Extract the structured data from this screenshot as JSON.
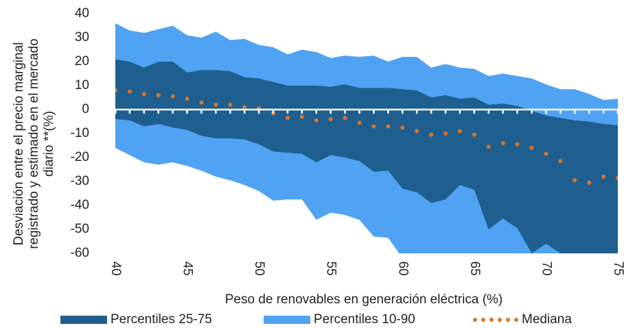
{
  "chart_data": {
    "type": "band",
    "x": [
      40,
      41,
      42,
      43,
      44,
      45,
      46,
      47,
      48,
      49,
      50,
      51,
      52,
      53,
      54,
      55,
      56,
      57,
      58,
      59,
      60,
      61,
      62,
      63,
      64,
      65,
      66,
      67,
      68,
      69,
      70,
      71,
      72,
      73,
      74,
      75
    ],
    "series": [
      {
        "name": "Percentiles 25-75",
        "color": "#1f5f8f",
        "upper": [
          21,
          20,
          17.5,
          20,
          20,
          15.5,
          16.5,
          16.5,
          16,
          13.5,
          13,
          11.5,
          10,
          10,
          10,
          9.5,
          10.5,
          9,
          9,
          9,
          8.5,
          8,
          5,
          6,
          4.5,
          5,
          2,
          2.5,
          1.5,
          -0.5,
          -2.5,
          -3.5,
          -4.5,
          -5,
          -6,
          -6.5
        ],
        "lower": [
          -4,
          -4.5,
          -7,
          -6,
          -7.5,
          -8.5,
          -11,
          -12,
          -12,
          -12.5,
          -14.5,
          -17.5,
          -18,
          -18.5,
          -22,
          -19,
          -20,
          -21.5,
          -26,
          -25.5,
          -33,
          -34.5,
          -39,
          -37.5,
          -31.5,
          -33.5,
          -50,
          -45.5,
          -49.5,
          -60,
          -56,
          -60,
          -62,
          -62,
          -62,
          -62
        ]
      },
      {
        "name": "Percentiles 10-90",
        "color": "#4fa3f2",
        "upper": [
          36,
          33,
          32,
          33.5,
          35,
          31,
          30,
          32.5,
          29,
          29.5,
          27,
          26,
          23,
          25,
          24,
          21.5,
          22.5,
          22,
          22.5,
          20,
          22,
          22,
          17.5,
          19,
          17.5,
          17,
          14,
          15,
          14,
          13,
          10.5,
          8.5,
          8.5,
          6.5,
          4,
          4.5
        ],
        "lower": [
          -16,
          -19,
          -22,
          -23,
          -22,
          -23.5,
          -25.5,
          -28,
          -29.5,
          -31.5,
          -34,
          -38,
          -37.5,
          -37.5,
          -46,
          -43,
          -44,
          -46,
          -53,
          -53.5,
          -62,
          -64,
          -65,
          -65,
          -65,
          -65,
          -65,
          -65,
          -65,
          -65,
          -65,
          -65,
          -65,
          -65,
          -65,
          -65
        ]
      },
      {
        "name": "Mediana",
        "color": "#e07327",
        "values": [
          8,
          7.5,
          6.5,
          6,
          5.5,
          4.5,
          3,
          2,
          2,
          1,
          0.5,
          -1.5,
          -3.5,
          -3,
          -4.5,
          -4,
          -3.5,
          -5.5,
          -7,
          -7,
          -7.5,
          -9,
          -10.5,
          -10,
          -9,
          -10.5,
          -15.5,
          -14,
          -14.5,
          -16,
          -18.5,
          -21.5,
          -29.5,
          -30.5,
          -28,
          -28.5
        ]
      }
    ],
    "xlabel": "Peso de renovables en generación eléctrica (%)",
    "ylabel": [
      "Desviación  entre el precio marginal",
      "registrado y estimado  en el mercado",
      "diario **(%)"
    ],
    "xlim": [
      40,
      75
    ],
    "ylim": [
      -60,
      40
    ],
    "xticks": [
      40,
      45,
      50,
      55,
      60,
      65,
      70,
      75
    ],
    "yticks": [
      -60,
      -50,
      -40,
      -30,
      -20,
      -10,
      0,
      10,
      20,
      30,
      40
    ]
  }
}
